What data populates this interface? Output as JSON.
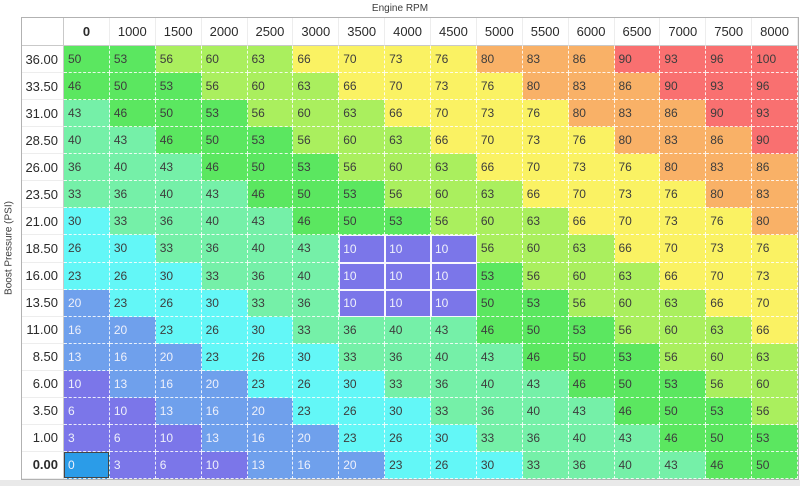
{
  "axes": {
    "x_title": "Engine RPM",
    "y_title": "Boost Pressure (PSI)"
  },
  "table": {
    "column_headers": [
      "0",
      "1000",
      "1500",
      "2000",
      "2500",
      "3000",
      "3500",
      "4000",
      "4500",
      "5000",
      "5500",
      "6000",
      "6500",
      "7000",
      "7500",
      "8000"
    ],
    "row_headers": [
      "36.00",
      "33.50",
      "31.00",
      "28.50",
      "26.00",
      "23.50",
      "21.00",
      "18.50",
      "16.00",
      "13.50",
      "11.00",
      "8.50",
      "6.00",
      "3.50",
      "1.00",
      "0.00"
    ],
    "values": [
      [
        50,
        53,
        56,
        60,
        63,
        66,
        70,
        73,
        76,
        80,
        83,
        86,
        90,
        93,
        96,
        100
      ],
      [
        46,
        50,
        53,
        56,
        60,
        63,
        66,
        70,
        73,
        76,
        80,
        83,
        86,
        90,
        93,
        96
      ],
      [
        43,
        46,
        50,
        53,
        56,
        60,
        63,
        66,
        70,
        73,
        76,
        80,
        83,
        86,
        90,
        93
      ],
      [
        40,
        43,
        46,
        50,
        53,
        56,
        60,
        63,
        66,
        70,
        73,
        76,
        80,
        83,
        86,
        90
      ],
      [
        36,
        40,
        43,
        46,
        50,
        53,
        56,
        60,
        63,
        66,
        70,
        73,
        76,
        80,
        83,
        86
      ],
      [
        33,
        36,
        40,
        43,
        46,
        50,
        53,
        56,
        60,
        63,
        66,
        70,
        73,
        76,
        80,
        83
      ],
      [
        30,
        33,
        36,
        40,
        43,
        46,
        50,
        53,
        56,
        60,
        63,
        66,
        70,
        73,
        76,
        80
      ],
      [
        26,
        30,
        33,
        36,
        40,
        43,
        10,
        10,
        10,
        56,
        60,
        63,
        66,
        70,
        73,
        76
      ],
      [
        23,
        26,
        30,
        33,
        36,
        40,
        10,
        10,
        10,
        53,
        56,
        60,
        63,
        66,
        70,
        73
      ],
      [
        20,
        23,
        26,
        30,
        33,
        36,
        10,
        10,
        10,
        50,
        53,
        56,
        60,
        63,
        66,
        70
      ],
      [
        16,
        20,
        23,
        26,
        30,
        33,
        36,
        40,
        43,
        46,
        50,
        53,
        56,
        60,
        63,
        66
      ],
      [
        13,
        16,
        20,
        23,
        26,
        30,
        33,
        36,
        40,
        43,
        46,
        50,
        53,
        56,
        60,
        63
      ],
      [
        10,
        13,
        16,
        20,
        23,
        26,
        30,
        33,
        36,
        40,
        43,
        46,
        50,
        53,
        56,
        60
      ],
      [
        6,
        10,
        13,
        16,
        20,
        23,
        26,
        30,
        33,
        36,
        40,
        43,
        46,
        50,
        53,
        56
      ],
      [
        3,
        6,
        10,
        13,
        16,
        20,
        23,
        26,
        30,
        33,
        36,
        40,
        43,
        46,
        50,
        53
      ],
      [
        0,
        3,
        6,
        10,
        13,
        16,
        20,
        23,
        26,
        30,
        33,
        36,
        40,
        43,
        46,
        50
      ]
    ],
    "bold_column_header": "0",
    "bold_row_header": "0.00",
    "selected_cell": {
      "row": "0.00",
      "column": "0",
      "row_index": 15,
      "col_index": 0,
      "value": 0
    },
    "selected_block": {
      "rows": [
        "18.50",
        "16.00",
        "13.50"
      ],
      "columns": [
        "3500",
        "4000",
        "4500"
      ],
      "row_indices": [
        7,
        8,
        9
      ],
      "col_indices": [
        6,
        7,
        8
      ],
      "value": 10
    }
  },
  "colors": {
    "scale": [
      {
        "min": 0,
        "max": 0,
        "color": "#2B9CE8"
      },
      {
        "min": 1,
        "max": 12,
        "color": "#7B76E9"
      },
      {
        "min": 13,
        "max": 22,
        "color": "#6FA0EC"
      },
      {
        "min": 23,
        "max": 32,
        "color": "#63F7F7"
      },
      {
        "min": 33,
        "max": 45,
        "color": "#75F0A8"
      },
      {
        "min": 46,
        "max": 55,
        "color": "#5BE760"
      },
      {
        "min": 56,
        "max": 65,
        "color": "#AAEF5E"
      },
      {
        "min": 66,
        "max": 79,
        "color": "#FAF263"
      },
      {
        "min": 80,
        "max": 89,
        "color": "#F9B167"
      },
      {
        "min": 90,
        "max": 100,
        "color": "#F97070"
      }
    ],
    "light_text_max": 20,
    "light_text": "#EEF0FB",
    "dark_text": "#3D3D3D",
    "selected_border": "#454545"
  }
}
